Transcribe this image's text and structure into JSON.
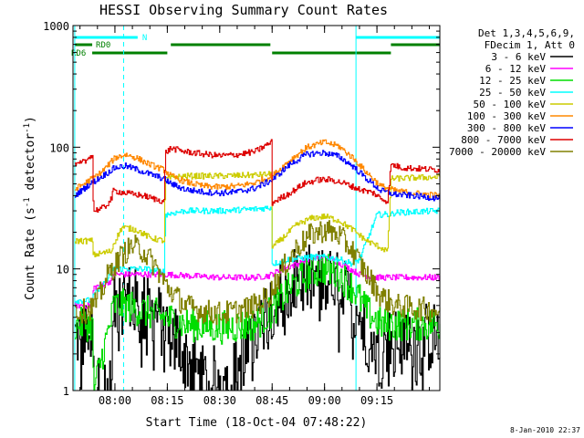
{
  "chart_data": {
    "type": "line",
    "title": "HESSI Observing Summary Count Rates",
    "xlabel": "Start Time (18-Oct-04 07:48:22)",
    "ylabel_main": "Count Rate (s",
    "ylabel_sup1": "-1",
    "ylabel_mid": " detector",
    "ylabel_sup2": "-1",
    "ylabel_end": ")",
    "footer": "8-Jan-2010 22:37",
    "y_scale": "log",
    "ylim": [
      1,
      1000
    ],
    "xlim_minutes": [
      -12,
      93
    ],
    "x_ticks": [
      {
        "m": 0,
        "label": "08:00"
      },
      {
        "m": 15,
        "label": "08:15"
      },
      {
        "m": 30,
        "label": "08:30"
      },
      {
        "m": 45,
        "label": "08:45"
      },
      {
        "m": 60,
        "label": "09:00"
      },
      {
        "m": 75,
        "label": "09:15"
      }
    ],
    "y_ticks": [
      {
        "v": 1,
        "label": "1"
      },
      {
        "v": 10,
        "label": "10"
      },
      {
        "v": 100,
        "label": "100"
      },
      {
        "v": 1000,
        "label": "1000"
      }
    ],
    "legend_header": [
      "Det 1,3,4,5,6,9,",
      "FDecim 1, Att 0"
    ],
    "series": [
      {
        "name": "3 - 6 keV",
        "color": "#000000",
        "noise": 0.3,
        "dense": true,
        "points": [
          [
            -11.5,
            2.8
          ],
          [
            -6.5,
            2.8
          ],
          [
            -6.2,
            1
          ],
          [
            -1,
            1
          ],
          [
            -0.5,
            5
          ],
          [
            3,
            6
          ],
          [
            7,
            5
          ],
          [
            12,
            4
          ],
          [
            16,
            3
          ],
          [
            20,
            2
          ],
          [
            25,
            1.2
          ],
          [
            33,
            1.2
          ],
          [
            38,
            2
          ],
          [
            42,
            4
          ],
          [
            46,
            6
          ],
          [
            50,
            7
          ],
          [
            55,
            8
          ],
          [
            60,
            8
          ],
          [
            64,
            7
          ],
          [
            68,
            5
          ],
          [
            72,
            3
          ],
          [
            75,
            2
          ],
          [
            78,
            2.5
          ],
          [
            93,
            2.8
          ]
        ]
      },
      {
        "name": "6 - 12 keV",
        "color": "#ff00ff",
        "points": [
          [
            -11.5,
            5
          ],
          [
            -6.5,
            5
          ],
          [
            -6.2,
            7
          ],
          [
            -1,
            8
          ],
          [
            -0.5,
            9
          ],
          [
            8,
            9
          ],
          [
            15,
            9
          ],
          [
            20,
            8.8
          ],
          [
            30,
            8.5
          ],
          [
            40,
            8.5
          ],
          [
            44,
            8.8
          ],
          [
            48,
            10
          ],
          [
            54,
            11.5
          ],
          [
            58,
            12.5
          ],
          [
            62,
            12
          ],
          [
            66,
            10.5
          ],
          [
            70,
            9
          ],
          [
            74,
            8.5
          ],
          [
            79,
            8.5
          ],
          [
            93,
            8.5
          ]
        ]
      },
      {
        "name": "12 - 25 keV",
        "color": "#00dd00",
        "noise": 0.14,
        "points": [
          [
            -11.5,
            3.5
          ],
          [
            -6.5,
            3.5
          ],
          [
            -6.2,
            1
          ],
          [
            -1,
            4
          ],
          [
            -0.5,
            5
          ],
          [
            3,
            5
          ],
          [
            8,
            4.5
          ],
          [
            14,
            4
          ],
          [
            20,
            3.5
          ],
          [
            30,
            3.3
          ],
          [
            40,
            3.5
          ],
          [
            45,
            4.5
          ],
          [
            50,
            7
          ],
          [
            56,
            9.5
          ],
          [
            60,
            10
          ],
          [
            64,
            9
          ],
          [
            68,
            7
          ],
          [
            72,
            4.5
          ],
          [
            76,
            3.5
          ],
          [
            80,
            3.5
          ],
          [
            93,
            3.5
          ]
        ]
      },
      {
        "name": "25 - 50 keV",
        "color": "#00ffff",
        "points": [
          [
            -11.5,
            5.5
          ],
          [
            -6.5,
            5.5
          ],
          [
            -6.2,
            6
          ],
          [
            -1,
            9
          ],
          [
            -0.5,
            10
          ],
          [
            8,
            10
          ],
          [
            14,
            9.5
          ],
          [
            14.4,
            28
          ],
          [
            20,
            30
          ],
          [
            30,
            30
          ],
          [
            40,
            31
          ],
          [
            44.8,
            32
          ],
          [
            45,
            11
          ],
          [
            50,
            12
          ],
          [
            56,
            12.5
          ],
          [
            60,
            12.5
          ],
          [
            64,
            12
          ],
          [
            68,
            11
          ],
          [
            70,
            12
          ],
          [
            75,
            28
          ],
          [
            79,
            28
          ],
          [
            80,
            29
          ],
          [
            93,
            30
          ]
        ]
      },
      {
        "name": "50 - 100 keV",
        "color": "#cccc00",
        "points": [
          [
            -11.5,
            17
          ],
          [
            -6.5,
            17
          ],
          [
            -6.2,
            13
          ],
          [
            -1,
            14
          ],
          [
            -0.5,
            16
          ],
          [
            2,
            22
          ],
          [
            6,
            21
          ],
          [
            10,
            18
          ],
          [
            14,
            17
          ],
          [
            14.4,
            55
          ],
          [
            20,
            58
          ],
          [
            30,
            58
          ],
          [
            40,
            59
          ],
          [
            44.8,
            60
          ],
          [
            45,
            15
          ],
          [
            48,
            18
          ],
          [
            52,
            23
          ],
          [
            56,
            26
          ],
          [
            60,
            27
          ],
          [
            64,
            25
          ],
          [
            68,
            21
          ],
          [
            72,
            17
          ],
          [
            76,
            15
          ],
          [
            78,
            14
          ],
          [
            79,
            55
          ],
          [
            85,
            56
          ],
          [
            93,
            57
          ]
        ]
      },
      {
        "name": "100 - 300 keV",
        "color": "#ff8800",
        "points": [
          [
            -11.5,
            45
          ],
          [
            -8,
            52
          ],
          [
            -4,
            62
          ],
          [
            0,
            82
          ],
          [
            3,
            87
          ],
          [
            6,
            82
          ],
          [
            10,
            72
          ],
          [
            14,
            65
          ],
          [
            16,
            58
          ],
          [
            20,
            52
          ],
          [
            25,
            48
          ],
          [
            30,
            47
          ],
          [
            35,
            48
          ],
          [
            40,
            51
          ],
          [
            45,
            58
          ],
          [
            50,
            78
          ],
          [
            55,
            100
          ],
          [
            60,
            110
          ],
          [
            64,
            102
          ],
          [
            68,
            82
          ],
          [
            72,
            62
          ],
          [
            76,
            48
          ],
          [
            80,
            44
          ],
          [
            85,
            42
          ],
          [
            93,
            40
          ]
        ]
      },
      {
        "name": "300 - 800 keV",
        "color": "#0000ff",
        "points": [
          [
            -11.5,
            40
          ],
          [
            -8,
            48
          ],
          [
            -4,
            57
          ],
          [
            0,
            68
          ],
          [
            3,
            70
          ],
          [
            6,
            66
          ],
          [
            10,
            60
          ],
          [
            14,
            55
          ],
          [
            16,
            50
          ],
          [
            20,
            45
          ],
          [
            25,
            43
          ],
          [
            30,
            42
          ],
          [
            35,
            43
          ],
          [
            40,
            46
          ],
          [
            45,
            54
          ],
          [
            50,
            72
          ],
          [
            55,
            88
          ],
          [
            60,
            90
          ],
          [
            64,
            84
          ],
          [
            68,
            70
          ],
          [
            72,
            55
          ],
          [
            76,
            44
          ],
          [
            80,
            41
          ],
          [
            85,
            40
          ],
          [
            93,
            38
          ]
        ]
      },
      {
        "name": "800 - 7000 keV",
        "color": "#dd0000",
        "points": [
          [
            -11.5,
            70
          ],
          [
            -8,
            78
          ],
          [
            -7.5,
            85
          ],
          [
            -6.5,
            85
          ],
          [
            -6.2,
            30
          ],
          [
            -3,
            32
          ],
          [
            -1,
            38
          ],
          [
            -0.5,
            44
          ],
          [
            3,
            42
          ],
          [
            8,
            40
          ],
          [
            12,
            37
          ],
          [
            14,
            36
          ],
          [
            14.4,
            90
          ],
          [
            16,
            98
          ],
          [
            20,
            92
          ],
          [
            25,
            88
          ],
          [
            30,
            85
          ],
          [
            35,
            87
          ],
          [
            40,
            92
          ],
          [
            44.8,
            110
          ],
          [
            45,
            35
          ],
          [
            50,
            42
          ],
          [
            54,
            50
          ],
          [
            58,
            54
          ],
          [
            62,
            54
          ],
          [
            66,
            50
          ],
          [
            70,
            45
          ],
          [
            74,
            42
          ],
          [
            76,
            38
          ],
          [
            78,
            36
          ],
          [
            79,
            72
          ],
          [
            82,
            68
          ],
          [
            93,
            65
          ]
        ]
      },
      {
        "name": "7000 - 20000 keV",
        "color": "#808000",
        "noise": 0.1,
        "points": [
          [
            -11.5,
            4.5
          ],
          [
            -8,
            4.5
          ],
          [
            -5,
            5.5
          ],
          [
            -2,
            9
          ],
          [
            2,
            13
          ],
          [
            5,
            15.5
          ],
          [
            8,
            14
          ],
          [
            12,
            10
          ],
          [
            15,
            7
          ],
          [
            20,
            5
          ],
          [
            25,
            4.5
          ],
          [
            30,
            4.3
          ],
          [
            35,
            4.5
          ],
          [
            40,
            5
          ],
          [
            44,
            6
          ],
          [
            48,
            10
          ],
          [
            52,
            15
          ],
          [
            56,
            19
          ],
          [
            60,
            21
          ],
          [
            64,
            19
          ],
          [
            68,
            14
          ],
          [
            72,
            9
          ],
          [
            76,
            6
          ],
          [
            80,
            5
          ],
          [
            93,
            4.5
          ]
        ]
      }
    ],
    "state_bars": [
      {
        "label": "N",
        "color": "#00ffff",
        "row": 0,
        "segments": [
          [
            -11.5,
            6.5
          ],
          [
            69,
            93
          ]
        ]
      },
      {
        "label": "RD0",
        "color": "#008000",
        "row": 1,
        "segments": [
          [
            -11.5,
            -6.5
          ],
          [
            16,
            44.5
          ],
          [
            79,
            93
          ]
        ]
      },
      {
        "label": "RD6",
        "color": "#008000",
        "row": 2,
        "segments": [
          [
            -6.5,
            15
          ],
          [
            45,
            79
          ]
        ]
      }
    ],
    "vlines_solid": [
      -11.5,
      69
    ],
    "vlines_dashed": [
      2.5,
      93
    ]
  }
}
